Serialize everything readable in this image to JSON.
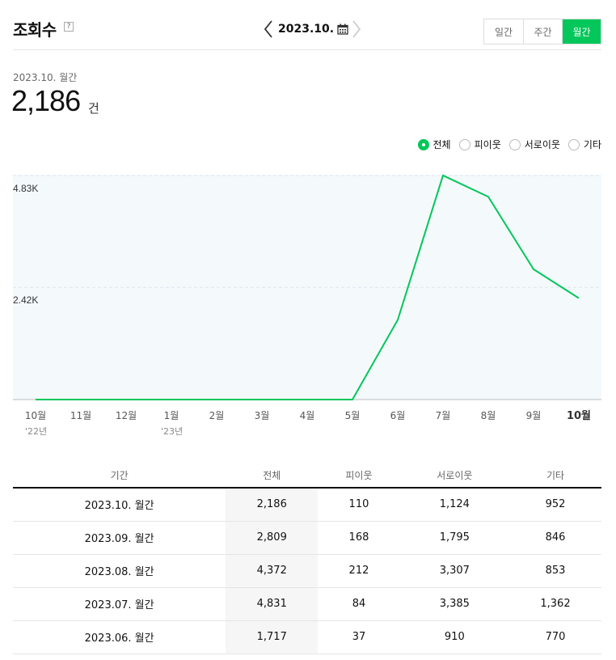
{
  "header": {
    "title": "조회수",
    "help": "?",
    "date": "2023.10.",
    "periods": [
      "일간",
      "주간",
      "월간"
    ],
    "active_period": 2
  },
  "summary": {
    "label": "2023.10. 월간",
    "value": "2,186",
    "unit": "건"
  },
  "legend": {
    "items": [
      "전체",
      "피이웃",
      "서로이웃",
      "기타"
    ],
    "selected": 0
  },
  "colors": {
    "accent": "#03c75a",
    "plot_bg": "#f4f9fc",
    "grid": "#dde6ec"
  },
  "chart_data": {
    "type": "line",
    "categories": [
      "10월",
      "11월",
      "12월",
      "1월",
      "2월",
      "3월",
      "4월",
      "5월",
      "6월",
      "7월",
      "8월",
      "9월",
      "10월"
    ],
    "year_labels": [
      {
        "index": 0,
        "text": "'22년"
      },
      {
        "index": 3,
        "text": "'23년"
      }
    ],
    "highlight_index": 12,
    "yticks": [
      {
        "value": 2420,
        "label": "2.42K"
      },
      {
        "value": 4830,
        "label": "4.83K"
      }
    ],
    "ylim": [
      0,
      4830
    ],
    "series": [
      {
        "values": [
          0,
          0,
          0,
          0,
          0,
          0,
          0,
          0,
          1717,
          4831,
          4372,
          2809,
          2186
        ],
        "color": "#03c75a"
      }
    ]
  },
  "table": {
    "headers": [
      "기간",
      "전체",
      "피이웃",
      "서로이웃",
      "기타"
    ],
    "rows": [
      [
        "2023.10. 월간",
        "2,186",
        "110",
        "1,124",
        "952"
      ],
      [
        "2023.09. 월간",
        "2,809",
        "168",
        "1,795",
        "846"
      ],
      [
        "2023.08. 월간",
        "4,372",
        "212",
        "3,307",
        "853"
      ],
      [
        "2023.07. 월간",
        "4,831",
        "84",
        "3,385",
        "1,362"
      ],
      [
        "2023.06. 월간",
        "1,717",
        "37",
        "910",
        "770"
      ]
    ]
  }
}
